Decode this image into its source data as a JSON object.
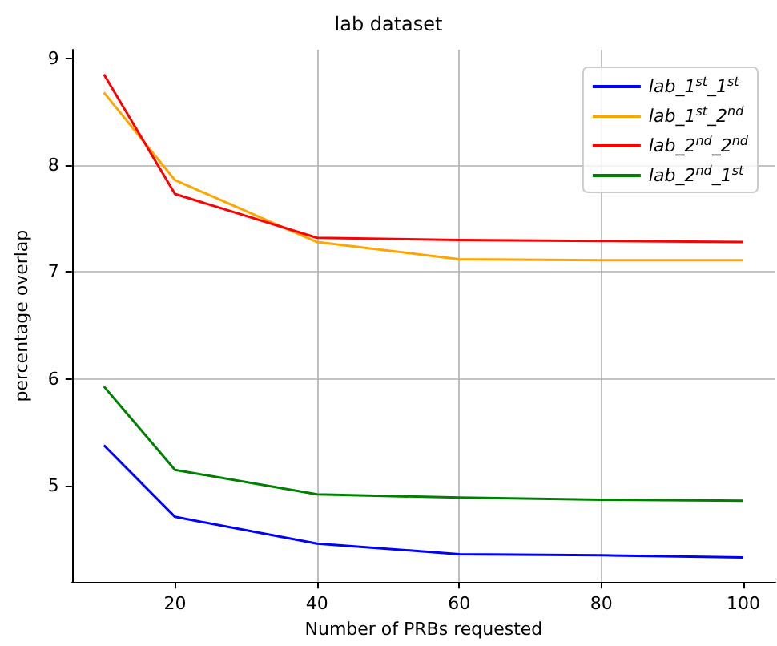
{
  "chart_data": {
    "type": "line",
    "title": "lab dataset",
    "xlabel": "Number of PRBs requested",
    "ylabel": "percentage overlap",
    "x": [
      10,
      20,
      40,
      60,
      80,
      100
    ],
    "series": [
      {
        "name": "lab_1$^{st}$_1$^{st}$",
        "color": "#0000ff",
        "values": [
          5.38,
          4.71,
          4.46,
          4.36,
          4.35,
          4.33
        ]
      },
      {
        "name": "lab_1$^{st}$_2$^{nd}$",
        "color": "#ffa500",
        "values": [
          8.68,
          7.86,
          7.28,
          7.12,
          7.11,
          7.11
        ]
      },
      {
        "name": "lab_2$^{nd}$_2$^{nd}$",
        "color": "#ff0000",
        "values": [
          8.85,
          7.73,
          7.32,
          7.3,
          7.29,
          7.28
        ]
      },
      {
        "name": "lab_2$^{nd}$_1$^{st}$",
        "color": "#008000",
        "values": [
          5.93,
          5.15,
          4.92,
          4.89,
          4.87,
          4.86
        ]
      }
    ],
    "xlim": [
      5.5,
      104.5
    ],
    "xticks": [
      20,
      40,
      60,
      80,
      100
    ],
    "ylim": [
      4.1,
      9.08
    ],
    "yticks": [
      5,
      6,
      7,
      8,
      9
    ],
    "grid": true,
    "legend": "top right",
    "marker": "none",
    "line_style": "solid"
  }
}
